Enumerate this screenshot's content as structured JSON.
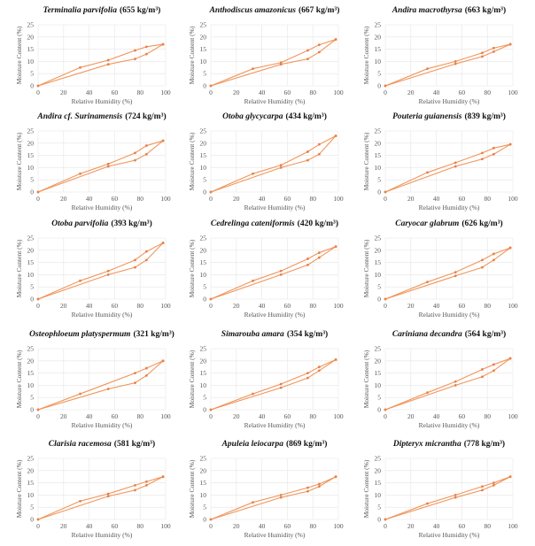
{
  "style": {
    "line_color": "#f0955a",
    "marker_color": "#e8804a",
    "grid_color": "#e6e6e6"
  },
  "chart_data": [
    {
      "type": "line",
      "species": "Terminalia parvifolia",
      "density": "(655 kg/m³)",
      "xlabel": "Relative Humidity (%)",
      "ylabel": "Moisture Content (%)",
      "xlim": [
        0,
        100
      ],
      "ylim": [
        0,
        25
      ],
      "grid": true,
      "xticks": [
        "0",
        "20",
        "40",
        "60",
        "80",
        "100"
      ],
      "yticks": [
        "0",
        "5",
        "10",
        "15",
        "20",
        "25"
      ],
      "series": [
        {
          "x": [
            0,
            33,
            55,
            76,
            85,
            98
          ],
          "values": [
            0,
            7.5,
            10.5,
            14.5,
            16,
            17
          ]
        },
        {
          "x": [
            0,
            55,
            76,
            85,
            98
          ],
          "values": [
            0,
            8.8,
            11,
            13,
            17
          ]
        }
      ]
    },
    {
      "type": "line",
      "species": "Anthodiscus amazonicus",
      "density": "(667 kg/m³)",
      "xlabel": "Relative Humidity (%)",
      "ylabel": "Moisture Content (%)",
      "xlim": [
        0,
        100
      ],
      "ylim": [
        0,
        25
      ],
      "grid": true,
      "xticks": [
        "0",
        "20",
        "40",
        "60",
        "80",
        "100"
      ],
      "yticks": [
        "0",
        "5",
        "10",
        "15",
        "20",
        "25"
      ],
      "series": [
        {
          "x": [
            0,
            33,
            55,
            76,
            85,
            98
          ],
          "values": [
            0,
            7,
            9.5,
            14.5,
            16.8,
            19
          ]
        },
        {
          "x": [
            0,
            55,
            76,
            85,
            98
          ],
          "values": [
            0,
            8.8,
            11,
            13.8,
            19
          ]
        }
      ]
    },
    {
      "type": "line",
      "species": "Andira macrothyrsa",
      "density": "(663 kg/m³)",
      "xlabel": "Relative Humidity (%)",
      "ylabel": "Moisture Content (%)",
      "xlim": [
        0,
        100
      ],
      "ylim": [
        0,
        25
      ],
      "grid": true,
      "xticks": [
        "0",
        "20",
        "40",
        "60",
        "80",
        "100"
      ],
      "yticks": [
        "0",
        "5",
        "10",
        "15",
        "20",
        "25"
      ],
      "series": [
        {
          "x": [
            0,
            33,
            55,
            76,
            85,
            98
          ],
          "values": [
            0,
            7,
            10,
            13.5,
            15.5,
            17
          ]
        },
        {
          "x": [
            0,
            55,
            76,
            85,
            98
          ],
          "values": [
            0,
            9,
            12,
            14,
            17
          ]
        }
      ]
    },
    {
      "type": "line",
      "species": "Andira cf. Surinamensis",
      "density": "(724 kg/m³)",
      "xlabel": "Relative Humidity (%)",
      "ylabel": "Moisture Content (%)",
      "xlim": [
        0,
        100
      ],
      "ylim": [
        0,
        25
      ],
      "grid": true,
      "xticks": [
        "0",
        "20",
        "40",
        "60",
        "80",
        "100"
      ],
      "yticks": [
        "0",
        "5",
        "10",
        "15",
        "20",
        "25"
      ],
      "series": [
        {
          "x": [
            0,
            33,
            55,
            76,
            85,
            98
          ],
          "values": [
            0,
            7.5,
            11.5,
            16,
            19,
            21
          ]
        },
        {
          "x": [
            0,
            55,
            76,
            85,
            98
          ],
          "values": [
            0,
            10.5,
            13,
            15.5,
            21
          ]
        }
      ]
    },
    {
      "type": "line",
      "species": "Otoba glycycarpa",
      "density": "(434 kg/m³)",
      "xlabel": "Relative Humidity (%)",
      "ylabel": "Moisture Content (%)",
      "xlim": [
        0,
        100
      ],
      "ylim": [
        0,
        25
      ],
      "grid": true,
      "xticks": [
        "0",
        "20",
        "40",
        "60",
        "80",
        "100"
      ],
      "yticks": [
        "0",
        "5",
        "10",
        "15",
        "20",
        "25"
      ],
      "series": [
        {
          "x": [
            0,
            33,
            55,
            76,
            85,
            98
          ],
          "values": [
            0,
            7.5,
            11,
            16.5,
            19.5,
            23
          ]
        },
        {
          "x": [
            0,
            55,
            76,
            85,
            98
          ],
          "values": [
            0,
            10,
            13,
            15.5,
            23
          ]
        }
      ]
    },
    {
      "type": "line",
      "species": "Pouteria guianensis",
      "density": "(839 kg/m³)",
      "xlabel": "Relative Humidity (%)",
      "ylabel": "Moisture Content (%)",
      "xlim": [
        0,
        100
      ],
      "ylim": [
        0,
        25
      ],
      "grid": true,
      "xticks": [
        "0",
        "20",
        "40",
        "60",
        "80",
        "100"
      ],
      "yticks": [
        "0",
        "5",
        "10",
        "15",
        "20",
        "25"
      ],
      "series": [
        {
          "x": [
            0,
            33,
            55,
            76,
            85,
            98
          ],
          "values": [
            0,
            8,
            12,
            16,
            18,
            19.5
          ]
        },
        {
          "x": [
            0,
            55,
            76,
            85,
            98
          ],
          "values": [
            0,
            10.5,
            13.5,
            15.5,
            19.5
          ]
        }
      ]
    },
    {
      "type": "line",
      "species": "Otoba parvifolia",
      "density": "(393 kg/m³)",
      "xlabel": "Relative Humidity (%)",
      "ylabel": "Moisture Content (%)",
      "xlim": [
        0,
        100
      ],
      "ylim": [
        0,
        25
      ],
      "grid": true,
      "xticks": [
        "0",
        "20",
        "40",
        "60",
        "80",
        "100"
      ],
      "yticks": [
        "0",
        "5",
        "10",
        "15",
        "20",
        "25"
      ],
      "series": [
        {
          "x": [
            0,
            33,
            55,
            76,
            85,
            98
          ],
          "values": [
            0,
            7.5,
            11.5,
            16,
            19.5,
            23
          ]
        },
        {
          "x": [
            0,
            55,
            76,
            85,
            98
          ],
          "values": [
            0,
            10,
            13,
            16,
            23
          ]
        }
      ]
    },
    {
      "type": "line",
      "species": "Cedrelinga cateniformis",
      "density": "(420 kg/m³)",
      "xlabel": "Relative Humidity (%)",
      "ylabel": "Moisture Content (%)",
      "xlim": [
        0,
        100
      ],
      "ylim": [
        0,
        25
      ],
      "grid": true,
      "xticks": [
        "0",
        "20",
        "40",
        "60",
        "80",
        "100"
      ],
      "yticks": [
        "0",
        "5",
        "10",
        "15",
        "20",
        "25"
      ],
      "series": [
        {
          "x": [
            0,
            33,
            55,
            76,
            85,
            98
          ],
          "values": [
            0,
            7.5,
            11.5,
            16.5,
            19,
            21.5
          ]
        },
        {
          "x": [
            0,
            55,
            76,
            85,
            98
          ],
          "values": [
            0,
            10,
            14,
            17,
            21.5
          ]
        }
      ]
    },
    {
      "type": "line",
      "species": "Caryocar glabrum",
      "density": "(626 kg/m³)",
      "xlabel": "Relative Humidity (%)",
      "ylabel": "Moisture Content (%)",
      "xlim": [
        0,
        100
      ],
      "ylim": [
        0,
        25
      ],
      "grid": true,
      "xticks": [
        "0",
        "20",
        "40",
        "60",
        "80",
        "100"
      ],
      "yticks": [
        "0",
        "5",
        "10",
        "15",
        "20",
        "25"
      ],
      "series": [
        {
          "x": [
            0,
            33,
            55,
            76,
            85,
            98
          ],
          "values": [
            0,
            7,
            11,
            16,
            18.5,
            21
          ]
        },
        {
          "x": [
            0,
            55,
            76,
            85,
            98
          ],
          "values": [
            0,
            9.5,
            13,
            16,
            21
          ]
        }
      ]
    },
    {
      "type": "line",
      "species": "Osteophloeum platyspermum",
      "density": "(321 kg/m³)",
      "xlabel": "Relative Humidity (%)",
      "ylabel": "Moisture Content (%)",
      "xlim": [
        0,
        100
      ],
      "ylim": [
        0,
        25
      ],
      "grid": true,
      "xticks": [
        "0",
        "20",
        "40",
        "60",
        "80",
        "100"
      ],
      "yticks": [
        "0",
        "5",
        "10",
        "15",
        "20",
        "25"
      ],
      "series": [
        {
          "x": [
            0,
            33,
            76,
            85,
            98
          ],
          "values": [
            0,
            6.5,
            15,
            17,
            20
          ]
        },
        {
          "x": [
            0,
            55,
            76,
            85,
            98
          ],
          "values": [
            0,
            8.5,
            11,
            14,
            20
          ]
        }
      ]
    },
    {
      "type": "line",
      "species": "Simarouba amara",
      "density": "(354 kg/m³)",
      "xlabel": "Relative Humidity (%)",
      "ylabel": "Moisture Content (%)",
      "xlim": [
        0,
        100
      ],
      "ylim": [
        0,
        25
      ],
      "grid": true,
      "xticks": [
        "0",
        "20",
        "40",
        "60",
        "80",
        "100"
      ],
      "yticks": [
        "0",
        "5",
        "10",
        "15",
        "20",
        "25"
      ],
      "series": [
        {
          "x": [
            0,
            33,
            55,
            76,
            85,
            98
          ],
          "values": [
            0,
            6.5,
            10.5,
            15,
            17.5,
            20.5
          ]
        },
        {
          "x": [
            0,
            55,
            76,
            85,
            98
          ],
          "values": [
            0,
            9,
            13,
            16,
            20.5
          ]
        }
      ]
    },
    {
      "type": "line",
      "species": "Cariniana decandra",
      "density": "(564 kg/m³)",
      "xlabel": "Relative Humidity (%)",
      "ylabel": "Moisture Content (%)",
      "xlim": [
        0,
        100
      ],
      "ylim": [
        0,
        25
      ],
      "grid": true,
      "xticks": [
        "0",
        "20",
        "40",
        "60",
        "80",
        "100"
      ],
      "yticks": [
        "0",
        "5",
        "10",
        "15",
        "20",
        "25"
      ],
      "series": [
        {
          "x": [
            0,
            33,
            55,
            76,
            85,
            98
          ],
          "values": [
            0,
            7,
            11.5,
            16.5,
            18.5,
            21
          ]
        },
        {
          "x": [
            0,
            55,
            76,
            85,
            98
          ],
          "values": [
            0,
            10,
            13.5,
            16,
            21
          ]
        }
      ]
    },
    {
      "type": "line",
      "species": "Clarisia racemosa",
      "density": "(581 kg/m³)",
      "xlabel": "Relative Humidity (%)",
      "ylabel": "Moisture Content (%)",
      "xlim": [
        0,
        100
      ],
      "ylim": [
        0,
        25
      ],
      "grid": true,
      "xticks": [
        "0",
        "20",
        "40",
        "60",
        "80",
        "100"
      ],
      "yticks": [
        "0",
        "5",
        "10",
        "15",
        "20",
        "25"
      ],
      "series": [
        {
          "x": [
            0,
            33,
            55,
            76,
            85,
            98
          ],
          "values": [
            0,
            7.5,
            10.5,
            14,
            15.5,
            17.5
          ]
        },
        {
          "x": [
            0,
            55,
            76,
            85,
            98
          ],
          "values": [
            0,
            9.5,
            12,
            14,
            17.5
          ]
        }
      ]
    },
    {
      "type": "line",
      "species": "Apuleia leiocarpa",
      "density": "(869 kg/m³)",
      "xlabel": "Relative Humidity (%)",
      "ylabel": "Moisture Content (%)",
      "xlim": [
        0,
        100
      ],
      "ylim": [
        0,
        25
      ],
      "grid": true,
      "xticks": [
        "0",
        "20",
        "40",
        "60",
        "80",
        "100"
      ],
      "yticks": [
        "0",
        "5",
        "10",
        "15",
        "20",
        "25"
      ],
      "series": [
        {
          "x": [
            0,
            33,
            55,
            76,
            85,
            98
          ],
          "values": [
            0,
            7,
            10,
            13,
            14.5,
            17.5
          ]
        },
        {
          "x": [
            0,
            55,
            76,
            85,
            98
          ],
          "values": [
            0,
            9,
            11.5,
            13.5,
            17.5
          ]
        }
      ]
    },
    {
      "type": "line",
      "species": "Dipteryx micrantha",
      "density": "(778 kg/m³)",
      "xlabel": "Relative Humidity (%)",
      "ylabel": "Moisture Content (%)",
      "xlim": [
        0,
        100
      ],
      "ylim": [
        0,
        25
      ],
      "grid": true,
      "xticks": [
        "0",
        "20",
        "40",
        "60",
        "80",
        "100"
      ],
      "yticks": [
        "0",
        "5",
        "10",
        "15",
        "20",
        "25"
      ],
      "series": [
        {
          "x": [
            0,
            33,
            55,
            76,
            85,
            98
          ],
          "values": [
            0,
            6.5,
            10,
            13.5,
            15,
            17.5
          ]
        },
        {
          "x": [
            0,
            55,
            76,
            85,
            98
          ],
          "values": [
            0,
            9,
            12,
            14,
            17.5
          ]
        }
      ]
    }
  ]
}
